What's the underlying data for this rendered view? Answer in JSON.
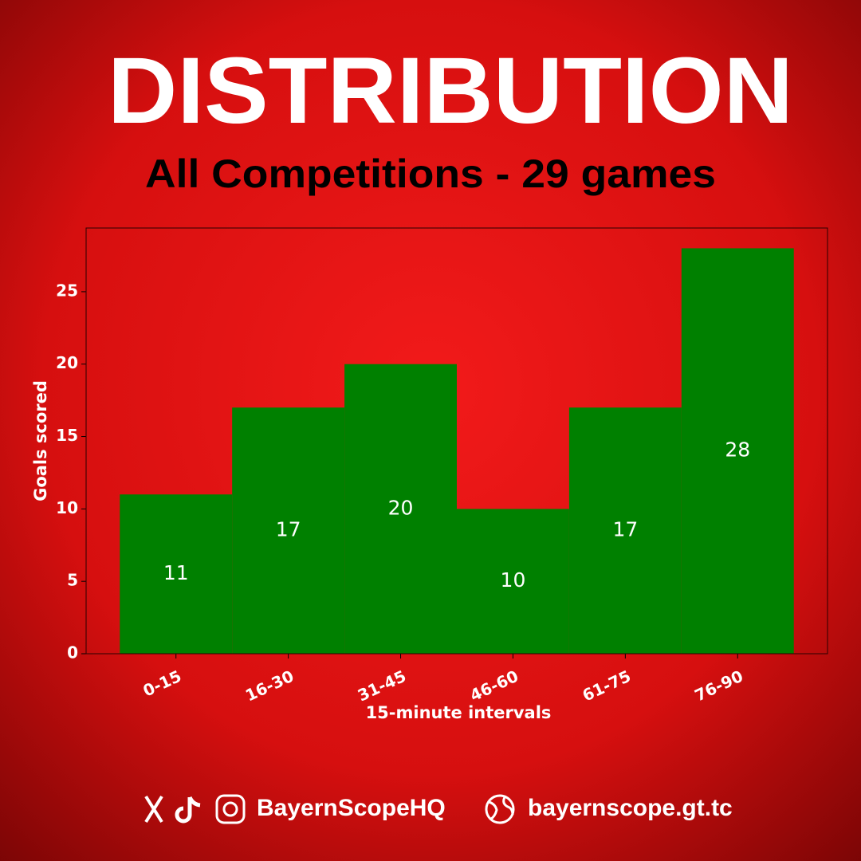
{
  "chart_data": {
    "type": "bar",
    "title": "DISTRIBUTION",
    "subtitle": "All Competitions - 29 games",
    "categories": [
      "0-15",
      "16-30",
      "31-45",
      "46-60",
      "61-75",
      "76-90"
    ],
    "values": [
      11,
      17,
      20,
      10,
      17,
      28
    ],
    "color": "#008000",
    "ylim": [
      0,
      29.4
    ],
    "yticks": [
      0,
      5,
      10,
      15,
      20,
      25
    ],
    "xlabel": "15-minute intervals",
    "ylabel": "Goals scored",
    "grid": false
  },
  "footer": {
    "handle": "BayernScopeHQ",
    "website": "bayernscope.gt.tc"
  }
}
